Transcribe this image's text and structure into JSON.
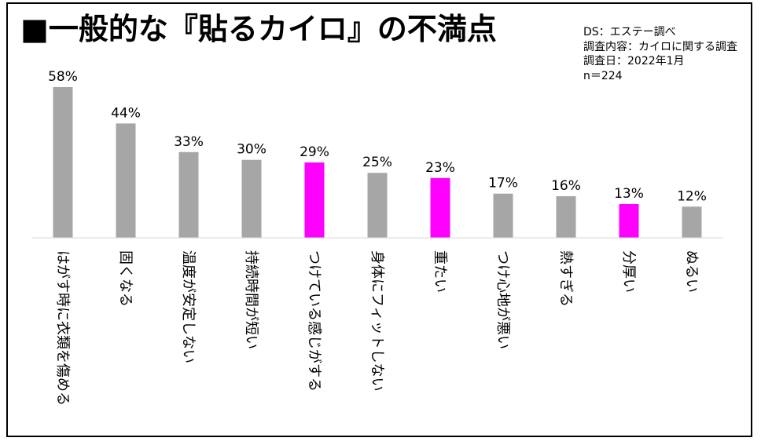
{
  "title": "■一般的な『貼るカイロ』の不満点",
  "source": {
    "line1": "DS：エステー調べ",
    "line2": "調査内容：カイロに関する調査",
    "line3": "調査日：2022年1月",
    "line4": "n＝224"
  },
  "colors": {
    "gray": "#a6a6a6",
    "highlight": "#ff00ff",
    "axis": "#d9d9d9"
  },
  "chart_data": {
    "type": "bar",
    "title": "■一般的な『貼るカイロ』の不満点",
    "xlabel": "",
    "ylabel": "",
    "ylim": [
      0,
      60
    ],
    "grid": false,
    "unit": "%",
    "categories": [
      "はがす時に衣類を傷める",
      "固くなる",
      "温度が安定しない",
      "持続時間が短い",
      "つけている感じがする",
      "身体にフィットしない",
      "重たい",
      "つけ心地が悪い",
      "熱すぎる",
      "分厚い",
      "ぬるい"
    ],
    "values": [
      58,
      44,
      33,
      30,
      29,
      25,
      23,
      17,
      16,
      13,
      12
    ],
    "data_labels": [
      "58%",
      "44%",
      "33%",
      "30%",
      "29%",
      "25%",
      "23%",
      "17%",
      "16%",
      "13%",
      "12%"
    ],
    "highlighted": [
      false,
      false,
      false,
      false,
      true,
      false,
      true,
      false,
      false,
      true,
      false
    ]
  }
}
